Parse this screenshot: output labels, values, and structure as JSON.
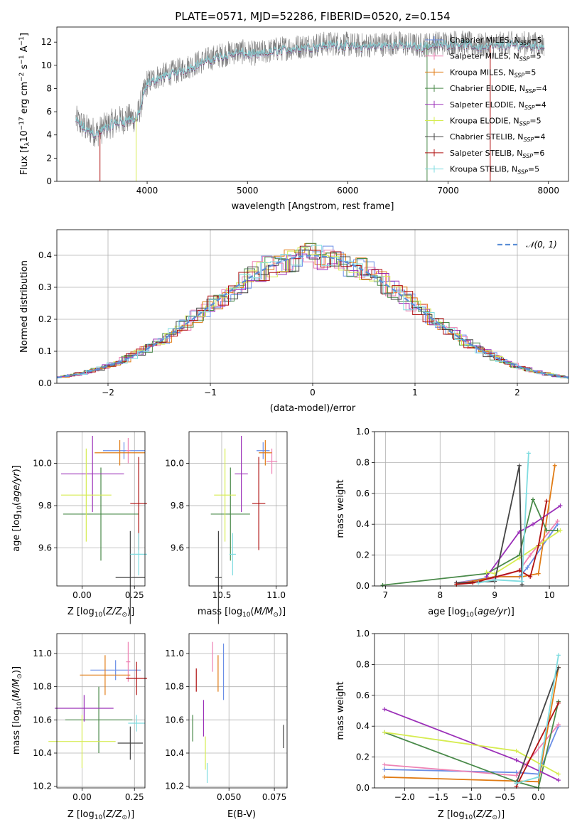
{
  "figure_title": "PLATE=0571, MJD=52286, FIBERID=0520, z=0.154",
  "colors": {
    "Chabrier MILES": "#6a8ee6",
    "Salpeter MILES": "#ee82b4",
    "Kroupa MILES": "#e07b14",
    "Chabrier ELODIE": "#4a8a4a",
    "Salpeter ELODIE": "#9b30b8",
    "Kroupa ELODIE": "#d6ec50",
    "Chabrier STELIB": "#444444",
    "Salpeter STELIB": "#b01010",
    "Kroupa STELIB": "#7fdce0"
  },
  "chart_data": [
    {
      "type": "line",
      "panel": "spectrum",
      "title": "PLATE=0571, MJD=52286, FIBERID=0520, z=0.154",
      "xlabel": "wavelength [Angstrom, rest frame]",
      "ylabel": "Flux [f_λ 10^-17 erg cm^-2 s^-1 A^-1]",
      "xlim": [
        3100,
        8200
      ],
      "ylim": [
        0,
        13.3
      ],
      "xticks": [
        4000,
        5000,
        6000,
        7000,
        8000
      ],
      "yticks": [
        0,
        2,
        4,
        6,
        8,
        10,
        12
      ],
      "legend_position": "right",
      "legend": [
        "Chabrier MILES, N_SSP=5",
        "Salpeter MILES, N_SSP=5",
        "Kroupa MILES, N_SSP=5",
        "Chabrier ELODIE, N_SSP=4",
        "Salpeter ELODIE, N_SSP=4",
        "Kroupa ELODIE, N_SSP=5",
        "Chabrier STELIB, N_SSP=4",
        "Salpeter STELIB, N_SSP=6",
        "Kroupa STELIB, N_SSP=5"
      ],
      "data_envelope": {
        "wavelength": [
          3290,
          3400,
          3500,
          3600,
          3700,
          3800,
          3900,
          4000,
          4100,
          4300,
          4500,
          4700,
          4900,
          5100,
          5300,
          5500,
          5700,
          5900,
          6100,
          6300,
          6500,
          6700,
          6900,
          7100,
          7300,
          7500,
          7700,
          7900
        ],
        "flux": [
          5.3,
          4.5,
          4.2,
          4.8,
          5.2,
          5.4,
          5.5,
          8.5,
          9.0,
          9.5,
          10.2,
          10.8,
          11.2,
          11.0,
          11.4,
          11.6,
          11.8,
          11.9,
          11.7,
          11.8,
          11.9,
          11.7,
          11.9,
          12.0,
          11.7,
          11.8,
          11.9,
          11.8
        ]
      }
    },
    {
      "type": "histogram",
      "panel": "residuals",
      "xlabel": "(data-model)/error",
      "ylabel": "Normed distribution",
      "xlim": [
        -2.5,
        2.5
      ],
      "ylim": [
        0,
        0.48
      ],
      "xticks": [
        -2,
        -1,
        0,
        1,
        2
      ],
      "yticks": [
        0.0,
        0.1,
        0.2,
        0.3,
        0.4
      ],
      "legend": [
        "𝒩(0, 1)"
      ],
      "legend_position": "top-right",
      "grid": true
    },
    {
      "type": "scatter",
      "panel": "age_vs_Z",
      "xlabel": "Z [log10(Z/Z⊙)]",
      "ylabel": "age [log10(age/yr)]",
      "xlim": [
        -0.12,
        0.3
      ],
      "ylim": [
        9.42,
        10.15
      ],
      "xticks": [
        0.0,
        0.25
      ],
      "yticks": [
        9.6,
        9.8,
        10.0
      ],
      "points": [
        {
          "model": "Chabrier MILES",
          "x": 0.2,
          "y": 10.06,
          "xerr": 0.1,
          "yerr": 0.04
        },
        {
          "model": "Salpeter MILES",
          "x": 0.22,
          "y": 10.06,
          "xerr": 0.01,
          "yerr": 0.06
        },
        {
          "model": "Kroupa MILES",
          "x": 0.18,
          "y": 10.05,
          "xerr": 0.12,
          "yerr": 0.06
        },
        {
          "model": "Chabrier ELODIE",
          "x": 0.09,
          "y": 9.76,
          "xerr": 0.18,
          "yerr": 0.22
        },
        {
          "model": "Salpeter ELODIE",
          "x": 0.05,
          "y": 9.95,
          "xerr": 0.15,
          "yerr": 0.18
        },
        {
          "model": "Kroupa ELODIE",
          "x": 0.02,
          "y": 9.85,
          "xerr": 0.12,
          "yerr": 0.22
        },
        {
          "model": "Chabrier STELIB",
          "x": 0.23,
          "y": 9.46,
          "xerr": 0.07,
          "yerr": 0.22
        },
        {
          "model": "Salpeter STELIB",
          "x": 0.27,
          "y": 9.81,
          "xerr": 0.04,
          "yerr": 0.22
        },
        {
          "model": "Kroupa STELIB",
          "x": 0.27,
          "y": 9.57,
          "xerr": 0.04,
          "yerr": 0.1
        }
      ]
    },
    {
      "type": "scatter",
      "panel": "age_vs_mass",
      "xlabel": "mass [log10(M/M⊙)]",
      "ylabel": "",
      "xlim": [
        10.2,
        11.1
      ],
      "ylim": [
        9.42,
        10.15
      ],
      "xticks": [
        10.5,
        11.0
      ],
      "yticks": [
        9.6,
        9.8,
        10.0
      ],
      "points": [
        {
          "model": "Chabrier MILES",
          "x": 10.88,
          "y": 10.06,
          "xerr": 0.06,
          "yerr": 0.04
        },
        {
          "model": "Salpeter MILES",
          "x": 10.96,
          "y": 10.01,
          "xerr": 0.05,
          "yerr": 0.06
        },
        {
          "model": "Kroupa MILES",
          "x": 10.9,
          "y": 10.05,
          "xerr": 0.06,
          "yerr": 0.06
        },
        {
          "model": "Chabrier ELODIE",
          "x": 10.58,
          "y": 9.76,
          "xerr": 0.18,
          "yerr": 0.22
        },
        {
          "model": "Salpeter ELODIE",
          "x": 10.68,
          "y": 9.95,
          "xerr": 0.06,
          "yerr": 0.18
        },
        {
          "model": "Kroupa ELODIE",
          "x": 10.53,
          "y": 9.85,
          "xerr": 0.1,
          "yerr": 0.22
        },
        {
          "model": "Chabrier STELIB",
          "x": 10.47,
          "y": 9.46,
          "xerr": 0.03,
          "yerr": 0.22
        },
        {
          "model": "Salpeter STELIB",
          "x": 10.84,
          "y": 9.81,
          "xerr": 0.06,
          "yerr": 0.22
        },
        {
          "model": "Kroupa STELIB",
          "x": 10.6,
          "y": 9.57,
          "xerr": 0.03,
          "yerr": 0.1
        }
      ]
    },
    {
      "type": "line",
      "panel": "weight_vs_age",
      "xlabel": "age [log10(age/yr)]",
      "ylabel": "mass weight",
      "xlim": [
        6.8,
        10.35
      ],
      "ylim": [
        0,
        1.0
      ],
      "xticks": [
        7,
        8,
        9,
        10
      ],
      "yticks": [
        0.0,
        0.2,
        0.4,
        0.6,
        0.8,
        1.0
      ],
      "grid": true,
      "series": [
        {
          "model": "Chabrier MILES",
          "x": [
            8.3,
            9.0,
            9.45,
            9.6,
            10.15
          ],
          "y": [
            0.02,
            0.06,
            0.06,
            0.12,
            0.4
          ]
        },
        {
          "model": "Salpeter MILES",
          "x": [
            8.3,
            9.0,
            9.45,
            9.65,
            10.15
          ],
          "y": [
            0.02,
            0.05,
            0.1,
            0.2,
            0.42
          ]
        },
        {
          "model": "Kroupa MILES",
          "x": [
            8.3,
            9.0,
            9.5,
            9.8,
            10.1
          ],
          "y": [
            0.01,
            0.06,
            0.06,
            0.08,
            0.78
          ]
        },
        {
          "model": "Chabrier ELODIE",
          "x": [
            6.95,
            8.85,
            9.45,
            9.7,
            9.95,
            10.15
          ],
          "y": [
            0.005,
            0.08,
            0.2,
            0.56,
            0.36,
            0.36
          ]
        },
        {
          "model": "Salpeter ELODIE",
          "x": [
            8.85,
            9.45,
            9.7,
            10.2
          ],
          "y": [
            0.06,
            0.35,
            0.4,
            0.52
          ]
        },
        {
          "model": "Kroupa ELODIE",
          "x": [
            8.85,
            9.0,
            9.45,
            10.2
          ],
          "y": [
            0.09,
            0.08,
            0.18,
            0.36
          ]
        },
        {
          "model": "Chabrier STELIB",
          "x": [
            8.3,
            9.0,
            9.45,
            9.5
          ],
          "y": [
            0.02,
            0.03,
            0.78,
            0.01
          ]
        },
        {
          "model": "Salpeter STELIB",
          "x": [
            8.3,
            8.6,
            9.45,
            9.65,
            9.8,
            9.95
          ],
          "y": [
            0.01,
            0.02,
            0.1,
            0.06,
            0.26,
            0.55
          ]
        },
        {
          "model": "Kroupa STELIB",
          "x": [
            8.7,
            9.0,
            9.5,
            9.58,
            9.62
          ],
          "y": [
            0.02,
            0.04,
            0.03,
            0.6,
            0.86
          ]
        }
      ]
    },
    {
      "type": "scatter",
      "panel": "mass_vs_Z",
      "xlabel": "Z [log10(Z/Z⊙)]",
      "ylabel": "mass [log10(M/M⊙)]",
      "xlim": [
        -0.12,
        0.3
      ],
      "ylim": [
        10.19,
        11.12
      ],
      "xticks": [
        0.0,
        0.25
      ],
      "yticks": [
        10.2,
        10.4,
        10.6,
        10.8,
        11.0
      ],
      "points": [
        {
          "model": "Chabrier MILES",
          "x": 0.16,
          "y": 10.9,
          "xerr": 0.12,
          "yerr": 0.06
        },
        {
          "model": "Salpeter MILES",
          "x": 0.22,
          "y": 10.95,
          "xerr": 0.01,
          "yerr": 0.12
        },
        {
          "model": "Kroupa MILES",
          "x": 0.11,
          "y": 10.87,
          "xerr": 0.12,
          "yerr": 0.12
        },
        {
          "model": "Chabrier ELODIE",
          "x": 0.08,
          "y": 10.6,
          "xerr": 0.16,
          "yerr": 0.2
        },
        {
          "model": "Salpeter ELODIE",
          "x": 0.01,
          "y": 10.67,
          "xerr": 0.14,
          "yerr": 0.08
        },
        {
          "model": "Kroupa ELODIE",
          "x": 0.0,
          "y": 10.47,
          "xerr": 0.16,
          "yerr": 0.16
        },
        {
          "model": "Chabrier STELIB",
          "x": 0.23,
          "y": 10.46,
          "xerr": 0.06,
          "yerr": 0.1
        },
        {
          "model": "Salpeter STELIB",
          "x": 0.26,
          "y": 10.85,
          "xerr": 0.05,
          "yerr": 0.1
        },
        {
          "model": "Kroupa STELIB",
          "x": 0.26,
          "y": 10.58,
          "xerr": 0.04,
          "yerr": 0.05
        }
      ]
    },
    {
      "type": "scatter",
      "panel": "mass_vs_EBV",
      "xlabel": "E(B-V)",
      "ylabel": "",
      "xlim": [
        0.028,
        0.082
      ],
      "ylim": [
        10.19,
        11.12
      ],
      "xticks": [
        0.05,
        0.075
      ],
      "yticks": [
        10.2,
        10.4,
        10.6,
        10.8,
        11.0
      ],
      "points": [
        {
          "model": "Chabrier MILES",
          "x": 0.047,
          "y": 10.89,
          "xerr": 0.0,
          "yerr": 0.17
        },
        {
          "model": "Salpeter MILES",
          "x": 0.041,
          "y": 10.98,
          "xerr": 0.0,
          "yerr": 0.09
        },
        {
          "model": "Kroupa MILES",
          "x": 0.044,
          "y": 10.88,
          "xerr": 0.0,
          "yerr": 0.11
        },
        {
          "model": "Chabrier ELODIE",
          "x": 0.03,
          "y": 10.55,
          "xerr": 0.0,
          "yerr": 0.08
        },
        {
          "model": "Salpeter ELODIE",
          "x": 0.036,
          "y": 10.61,
          "xerr": 0.0,
          "yerr": 0.11
        },
        {
          "model": "Kroupa ELODIE",
          "x": 0.037,
          "y": 10.4,
          "xerr": 0.0,
          "yerr": 0.1
        },
        {
          "model": "Chabrier STELIB",
          "x": 0.08,
          "y": 10.5,
          "xerr": 0.0,
          "yerr": 0.07
        },
        {
          "model": "Salpeter STELIB",
          "x": 0.032,
          "y": 10.84,
          "xerr": 0.0,
          "yerr": 0.07
        },
        {
          "model": "Kroupa STELIB",
          "x": 0.038,
          "y": 10.28,
          "xerr": 0.0,
          "yerr": 0.06
        }
      ]
    },
    {
      "type": "line",
      "panel": "weight_vs_Z",
      "xlabel": "Z [log10(Z/Z⊙)]",
      "ylabel": "mass weight",
      "xlim": [
        -2.45,
        0.45
      ],
      "ylim": [
        0,
        1.0
      ],
      "xticks": [
        -2.0,
        -1.5,
        -1.0,
        -0.5,
        0.0
      ],
      "yticks": [
        0.0,
        0.2,
        0.4,
        0.6,
        0.8,
        1.0
      ],
      "grid": true,
      "series": [
        {
          "model": "Chabrier MILES",
          "x": [
            -2.3,
            -0.33,
            0.0,
            0.3
          ],
          "y": [
            0.12,
            0.1,
            0.09,
            0.4
          ]
        },
        {
          "model": "Salpeter MILES",
          "x": [
            -2.3,
            -0.33,
            0.3
          ],
          "y": [
            0.15,
            0.08,
            0.41
          ]
        },
        {
          "model": "Kroupa MILES",
          "x": [
            -2.3,
            0.0,
            0.3
          ],
          "y": [
            0.07,
            0.04,
            0.78
          ]
        },
        {
          "model": "Chabrier ELODIE",
          "x": [
            -2.3,
            -0.33,
            0.0,
            0.3
          ],
          "y": [
            0.36,
            0.04,
            0.0,
            0.56
          ]
        },
        {
          "model": "Salpeter ELODIE",
          "x": [
            -2.3,
            -0.33,
            0.3
          ],
          "y": [
            0.51,
            0.18,
            0.05
          ]
        },
        {
          "model": "Kroupa ELODIE",
          "x": [
            -2.3,
            -0.33,
            0.3
          ],
          "y": [
            0.36,
            0.24,
            0.09
          ]
        },
        {
          "model": "Chabrier STELIB",
          "x": [
            -0.33,
            0.3
          ],
          "y": [
            0.03,
            0.78
          ]
        },
        {
          "model": "Salpeter STELIB",
          "x": [
            -0.33,
            0.3
          ],
          "y": [
            0.01,
            0.55
          ]
        },
        {
          "model": "Kroupa STELIB",
          "x": [
            -0.33,
            0.0,
            0.3
          ],
          "y": [
            0.03,
            0.07,
            0.86
          ]
        }
      ]
    }
  ]
}
